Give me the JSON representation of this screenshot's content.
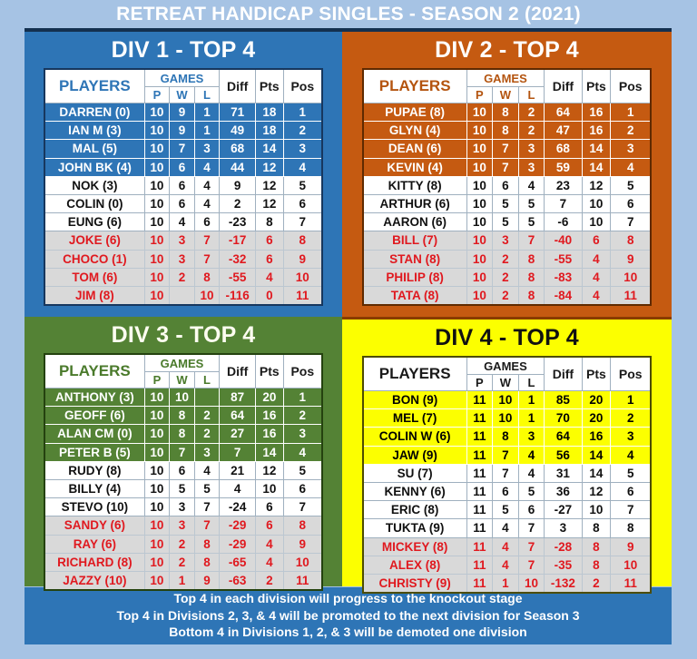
{
  "title": "RETREAT HANDICAP SINGLES - SEASON 2 (2021)",
  "colors": {
    "page_bg": "#a6c3e4",
    "div1": "#2e75b6",
    "div2": "#c55a11",
    "div3": "#548235",
    "div4": "#fcff00",
    "relegation_bg": "#d9d9d9",
    "relegation_text": "#e0191f",
    "footer_bg": "#2e75b6"
  },
  "table_header": {
    "players": "PLAYERS",
    "games": "GAMES",
    "p": "P",
    "w": "W",
    "l": "L",
    "diff": "Diff",
    "pts": "Pts",
    "pos": "Pos"
  },
  "divisions": [
    {
      "title": "DIV 1 - TOP 4",
      "rows": [
        {
          "player": "DARREN (0)",
          "p": "10",
          "w": "9",
          "l": "1",
          "diff": "71",
          "pts": "18",
          "pos": "1",
          "zone": "top"
        },
        {
          "player": "IAN M (3)",
          "p": "10",
          "w": "9",
          "l": "1",
          "diff": "49",
          "pts": "18",
          "pos": "2",
          "zone": "top"
        },
        {
          "player": "MAL (5)",
          "p": "10",
          "w": "7",
          "l": "3",
          "diff": "68",
          "pts": "14",
          "pos": "3",
          "zone": "top"
        },
        {
          "player": "JOHN BK (4)",
          "p": "10",
          "w": "6",
          "l": "4",
          "diff": "44",
          "pts": "12",
          "pos": "4",
          "zone": "top"
        },
        {
          "player": "NOK (3)",
          "p": "10",
          "w": "6",
          "l": "4",
          "diff": "9",
          "pts": "12",
          "pos": "5",
          "zone": "mid"
        },
        {
          "player": "COLIN (0)",
          "p": "10",
          "w": "6",
          "l": "4",
          "diff": "2",
          "pts": "12",
          "pos": "6",
          "zone": "mid"
        },
        {
          "player": "EUNG (6)",
          "p": "10",
          "w": "4",
          "l": "6",
          "diff": "-23",
          "pts": "8",
          "pos": "7",
          "zone": "mid"
        },
        {
          "player": "JOKE (6)",
          "p": "10",
          "w": "3",
          "l": "7",
          "diff": "-17",
          "pts": "6",
          "pos": "8",
          "zone": "rel"
        },
        {
          "player": "CHOCO (1)",
          "p": "10",
          "w": "3",
          "l": "7",
          "diff": "-32",
          "pts": "6",
          "pos": "9",
          "zone": "rel"
        },
        {
          "player": "TOM (6)",
          "p": "10",
          "w": "2",
          "l": "8",
          "diff": "-55",
          "pts": "4",
          "pos": "10",
          "zone": "rel"
        },
        {
          "player": "JIM (8)",
          "p": "10",
          "w": "",
          "l": "10",
          "diff": "-116",
          "pts": "0",
          "pos": "11",
          "zone": "rel"
        }
      ]
    },
    {
      "title": "DIV 2 - TOP 4",
      "rows": [
        {
          "player": "PUPAE (8)",
          "p": "10",
          "w": "8",
          "l": "2",
          "diff": "64",
          "pts": "16",
          "pos": "1",
          "zone": "top"
        },
        {
          "player": "GLYN (4)",
          "p": "10",
          "w": "8",
          "l": "2",
          "diff": "47",
          "pts": "16",
          "pos": "2",
          "zone": "top"
        },
        {
          "player": "DEAN (6)",
          "p": "10",
          "w": "7",
          "l": "3",
          "diff": "68",
          "pts": "14",
          "pos": "3",
          "zone": "top"
        },
        {
          "player": "KEVIN (4)",
          "p": "10",
          "w": "7",
          "l": "3",
          "diff": "59",
          "pts": "14",
          "pos": "4",
          "zone": "top"
        },
        {
          "player": "KITTY (8)",
          "p": "10",
          "w": "6",
          "l": "4",
          "diff": "23",
          "pts": "12",
          "pos": "5",
          "zone": "mid"
        },
        {
          "player": "ARTHUR (6)",
          "p": "10",
          "w": "5",
          "l": "5",
          "diff": "7",
          "pts": "10",
          "pos": "6",
          "zone": "mid"
        },
        {
          "player": "AARON (6)",
          "p": "10",
          "w": "5",
          "l": "5",
          "diff": "-6",
          "pts": "10",
          "pos": "7",
          "zone": "mid"
        },
        {
          "player": "BILL (7)",
          "p": "10",
          "w": "3",
          "l": "7",
          "diff": "-40",
          "pts": "6",
          "pos": "8",
          "zone": "rel"
        },
        {
          "player": "STAN (8)",
          "p": "10",
          "w": "2",
          "l": "8",
          "diff": "-55",
          "pts": "4",
          "pos": "9",
          "zone": "rel"
        },
        {
          "player": "PHILIP (8)",
          "p": "10",
          "w": "2",
          "l": "8",
          "diff": "-83",
          "pts": "4",
          "pos": "10",
          "zone": "rel"
        },
        {
          "player": "TATA (8)",
          "p": "10",
          "w": "2",
          "l": "8",
          "diff": "-84",
          "pts": "4",
          "pos": "11",
          "zone": "rel"
        }
      ]
    },
    {
      "title": "DIV 3 - TOP 4",
      "rows": [
        {
          "player": "ANTHONY (3)",
          "p": "10",
          "w": "10",
          "l": "",
          "diff": "87",
          "pts": "20",
          "pos": "1",
          "zone": "top"
        },
        {
          "player": "GEOFF (6)",
          "p": "10",
          "w": "8",
          "l": "2",
          "diff": "64",
          "pts": "16",
          "pos": "2",
          "zone": "top"
        },
        {
          "player": "ALAN CM (0)",
          "p": "10",
          "w": "8",
          "l": "2",
          "diff": "27",
          "pts": "16",
          "pos": "3",
          "zone": "top"
        },
        {
          "player": "PETER B (5)",
          "p": "10",
          "w": "7",
          "l": "3",
          "diff": "7",
          "pts": "14",
          "pos": "4",
          "zone": "top"
        },
        {
          "player": "RUDY (8)",
          "p": "10",
          "w": "6",
          "l": "4",
          "diff": "21",
          "pts": "12",
          "pos": "5",
          "zone": "mid"
        },
        {
          "player": "BILLY (4)",
          "p": "10",
          "w": "5",
          "l": "5",
          "diff": "4",
          "pts": "10",
          "pos": "6",
          "zone": "mid"
        },
        {
          "player": "STEVO (10)",
          "p": "10",
          "w": "3",
          "l": "7",
          "diff": "-24",
          "pts": "6",
          "pos": "7",
          "zone": "mid"
        },
        {
          "player": "SANDY (6)",
          "p": "10",
          "w": "3",
          "l": "7",
          "diff": "-29",
          "pts": "6",
          "pos": "8",
          "zone": "rel"
        },
        {
          "player": "RAY (6)",
          "p": "10",
          "w": "2",
          "l": "8",
          "diff": "-29",
          "pts": "4",
          "pos": "9",
          "zone": "rel"
        },
        {
          "player": "RICHARD (8)",
          "p": "10",
          "w": "2",
          "l": "8",
          "diff": "-65",
          "pts": "4",
          "pos": "10",
          "zone": "rel"
        },
        {
          "player": "JAZZY (10)",
          "p": "10",
          "w": "1",
          "l": "9",
          "diff": "-63",
          "pts": "2",
          "pos": "11",
          "zone": "rel"
        }
      ]
    },
    {
      "title": "DIV 4 - TOP 4",
      "rows": [
        {
          "player": "BON (9)",
          "p": "11",
          "w": "10",
          "l": "1",
          "diff": "85",
          "pts": "20",
          "pos": "1",
          "zone": "top"
        },
        {
          "player": "MEL (7)",
          "p": "11",
          "w": "10",
          "l": "1",
          "diff": "70",
          "pts": "20",
          "pos": "2",
          "zone": "top"
        },
        {
          "player": "COLIN W (6)",
          "p": "11",
          "w": "8",
          "l": "3",
          "diff": "64",
          "pts": "16",
          "pos": "3",
          "zone": "top"
        },
        {
          "player": "JAW (9)",
          "p": "11",
          "w": "7",
          "l": "4",
          "diff": "56",
          "pts": "14",
          "pos": "4",
          "zone": "top"
        },
        {
          "player": "SU (7)",
          "p": "11",
          "w": "7",
          "l": "4",
          "diff": "31",
          "pts": "14",
          "pos": "5",
          "zone": "mid"
        },
        {
          "player": "KENNY (6)",
          "p": "11",
          "w": "6",
          "l": "5",
          "diff": "36",
          "pts": "12",
          "pos": "6",
          "zone": "mid"
        },
        {
          "player": "ERIC (8)",
          "p": "11",
          "w": "5",
          "l": "6",
          "diff": "-27",
          "pts": "10",
          "pos": "7",
          "zone": "mid"
        },
        {
          "player": "TUKTA (9)",
          "p": "11",
          "w": "4",
          "l": "7",
          "diff": "3",
          "pts": "8",
          "pos": "8",
          "zone": "mid"
        },
        {
          "player": "MICKEY (8)",
          "p": "11",
          "w": "4",
          "l": "7",
          "diff": "-28",
          "pts": "8",
          "pos": "9",
          "zone": "rel"
        },
        {
          "player": "ALEX (8)",
          "p": "11",
          "w": "4",
          "l": "7",
          "diff": "-35",
          "pts": "8",
          "pos": "10",
          "zone": "rel"
        },
        {
          "player": "CHRISTY (9)",
          "p": "11",
          "w": "1",
          "l": "10",
          "diff": "-132",
          "pts": "2",
          "pos": "11",
          "zone": "rel"
        }
      ]
    }
  ],
  "footer": {
    "line1": "Top 4 in each division will progress to the knockout stage",
    "line2": "Top 4 in Divisions 2, 3, & 4 will be promoted to the next division for Season 3",
    "line3": "Bottom 4 in Divisions 1, 2, & 3 will be demoted one division"
  }
}
